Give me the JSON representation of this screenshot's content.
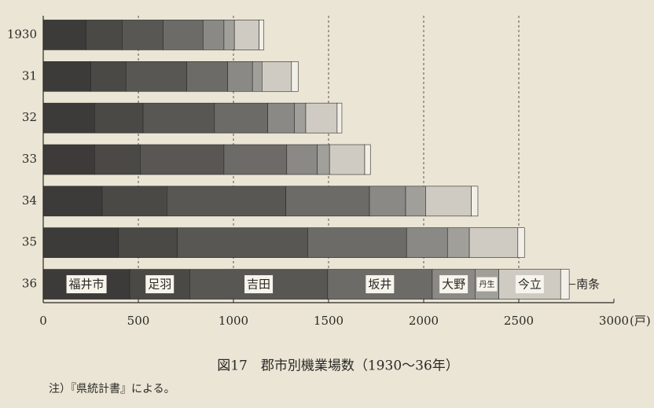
{
  "chart_data": {
    "type": "stacked-bar-horizontal",
    "title": "図17　郡市別機業場数（1930〜36年）",
    "note": "注）『県統計書』による。",
    "x_unit": "(戸)",
    "categories": [
      "1930",
      "31",
      "32",
      "33",
      "34",
      "35",
      "36"
    ],
    "series": [
      {
        "name": "福井市",
        "color": "#3c3b39",
        "values": [
          225,
          250,
          270,
          270,
          310,
          395,
          455
        ]
      },
      {
        "name": "足羽",
        "color": "#4a4946",
        "values": [
          190,
          185,
          255,
          240,
          340,
          310,
          315
        ]
      },
      {
        "name": "吉田",
        "color": "#585754",
        "values": [
          215,
          320,
          375,
          440,
          625,
          685,
          725
        ]
      },
      {
        "name": "坂井",
        "color": "#6c6b67",
        "values": [
          210,
          215,
          280,
          330,
          440,
          520,
          550
        ]
      },
      {
        "name": "大野",
        "color": "#8a8985",
        "values": [
          110,
          130,
          140,
          160,
          190,
          215,
          225
        ]
      },
      {
        "name": "丹生",
        "color": "#a09f9a",
        "values": [
          55,
          50,
          60,
          65,
          105,
          115,
          125
        ]
      },
      {
        "name": "今立",
        "color": "#cfcbc2",
        "values": [
          130,
          155,
          165,
          185,
          240,
          255,
          325
        ]
      },
      {
        "name": "南条",
        "color": "#f2efe8",
        "values": [
          25,
          35,
          25,
          30,
          35,
          35,
          45
        ]
      }
    ],
    "labelled_category": "36",
    "xlim": [
      0,
      3000
    ],
    "xticks": [
      0,
      500,
      1000,
      1500,
      2000,
      2500,
      3000
    ],
    "grid": true
  }
}
